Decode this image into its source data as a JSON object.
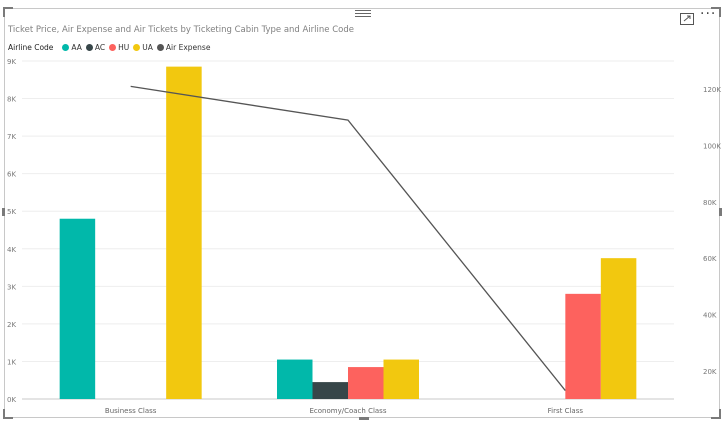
{
  "chart_data": {
    "type": "bar",
    "title": "Ticket Price, Air Expense and Air Tickets by Ticketing Cabin Type and Airline Code",
    "legend_title": "Airline Code",
    "legend_position": "top-left",
    "categories": [
      "Business Class",
      "Economy/Coach Class",
      "First Class"
    ],
    "series": [
      {
        "name": "AA",
        "color": "#01b8aa",
        "values": [
          4800,
          1050,
          null
        ]
      },
      {
        "name": "AC",
        "color": "#374649",
        "values": [
          null,
          450,
          null
        ]
      },
      {
        "name": "HU",
        "color": "#fd625e",
        "values": [
          null,
          850,
          2800
        ]
      },
      {
        "name": "UA",
        "color": "#f2c80f",
        "values": [
          8850,
          1050,
          3750
        ]
      }
    ],
    "line_series": {
      "name": "Air Expense",
      "color": "#555555",
      "axis": "right",
      "values": [
        121000,
        109000,
        13000
      ]
    },
    "y_left": {
      "min": 0,
      "max": 9000,
      "ticks": [
        0,
        1000,
        2000,
        3000,
        4000,
        5000,
        6000,
        7000,
        8000,
        9000
      ],
      "tick_labels": [
        "0K",
        "1K",
        "2K",
        "3K",
        "4K",
        "5K",
        "6K",
        "7K",
        "8K",
        "9K"
      ]
    },
    "y_right": {
      "min": 10000,
      "max": 130000,
      "ticks": [
        20000,
        40000,
        60000,
        80000,
        100000,
        120000
      ],
      "tick_labels": [
        "20K",
        "40K",
        "60K",
        "80K",
        "100K",
        "120K"
      ]
    },
    "grid": true
  },
  "visual": {
    "more_options": "···"
  }
}
